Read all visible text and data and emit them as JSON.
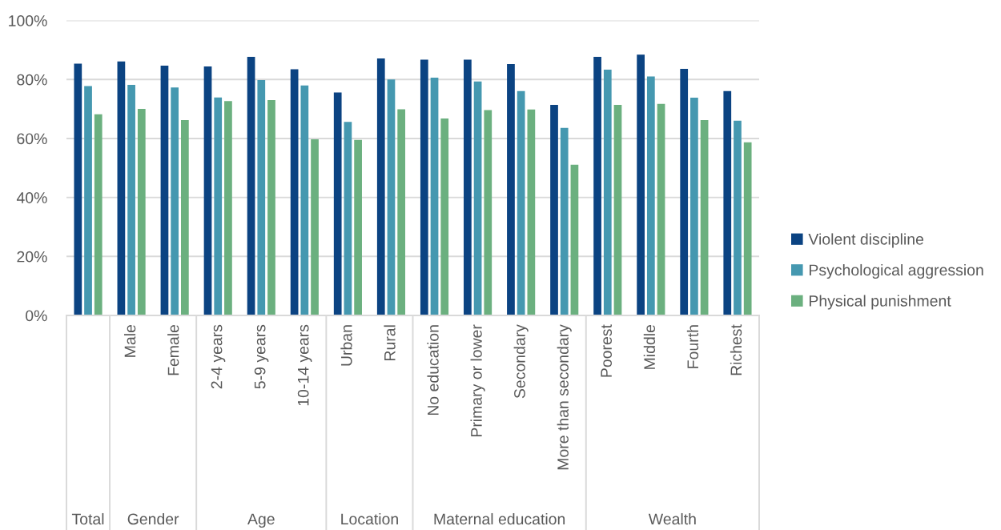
{
  "chart_data": {
    "type": "bar",
    "categories": [
      null,
      "Male",
      "Female",
      "2-4 years",
      "5-9 years",
      "10-14 years",
      "Urban",
      "Rural",
      "No education",
      "Primary or lower",
      "Secondary",
      "More than secondary",
      "Poorest",
      "Middle",
      "Fourth",
      "Richest"
    ],
    "series": [
      {
        "name": "Violent discipline",
        "color": "#0b4382",
        "values": [
          85.4,
          86.1,
          84.7,
          84.4,
          87.7,
          83.5,
          75.6,
          87.1,
          86.7,
          86.7,
          85.2,
          71.4,
          87.7,
          88.4,
          83.6,
          76.1
        ]
      },
      {
        "name": "Psychological aggression",
        "color": "#4598b0",
        "values": [
          77.8,
          78.2,
          77.3,
          73.9,
          79.8,
          78.0,
          65.6,
          80.0,
          80.6,
          79.3,
          76.1,
          63.6,
          83.3,
          81.0,
          73.8,
          66.0
        ]
      },
      {
        "name": "Physical punishment",
        "color": "#6bb07f",
        "values": [
          68.2,
          70.0,
          66.2,
          72.7,
          73.0,
          59.7,
          59.5,
          69.9,
          66.8,
          69.6,
          69.8,
          51.1,
          71.4,
          71.7,
          66.2,
          58.7
        ]
      }
    ],
    "ylim": [
      0,
      100
    ],
    "yticks": [
      {
        "value": 0,
        "label": "0%"
      },
      {
        "value": 20,
        "label": "20%"
      },
      {
        "value": 40,
        "label": "40%"
      },
      {
        "value": 60,
        "label": "60%"
      },
      {
        "value": 80,
        "label": "80%"
      },
      {
        "value": 100,
        "label": "100%"
      }
    ],
    "grid": "y",
    "legend": "right",
    "annotations": [
      "Total",
      "Gender",
      "Age",
      "Location",
      "Maternal education",
      "Wealth"
    ]
  }
}
